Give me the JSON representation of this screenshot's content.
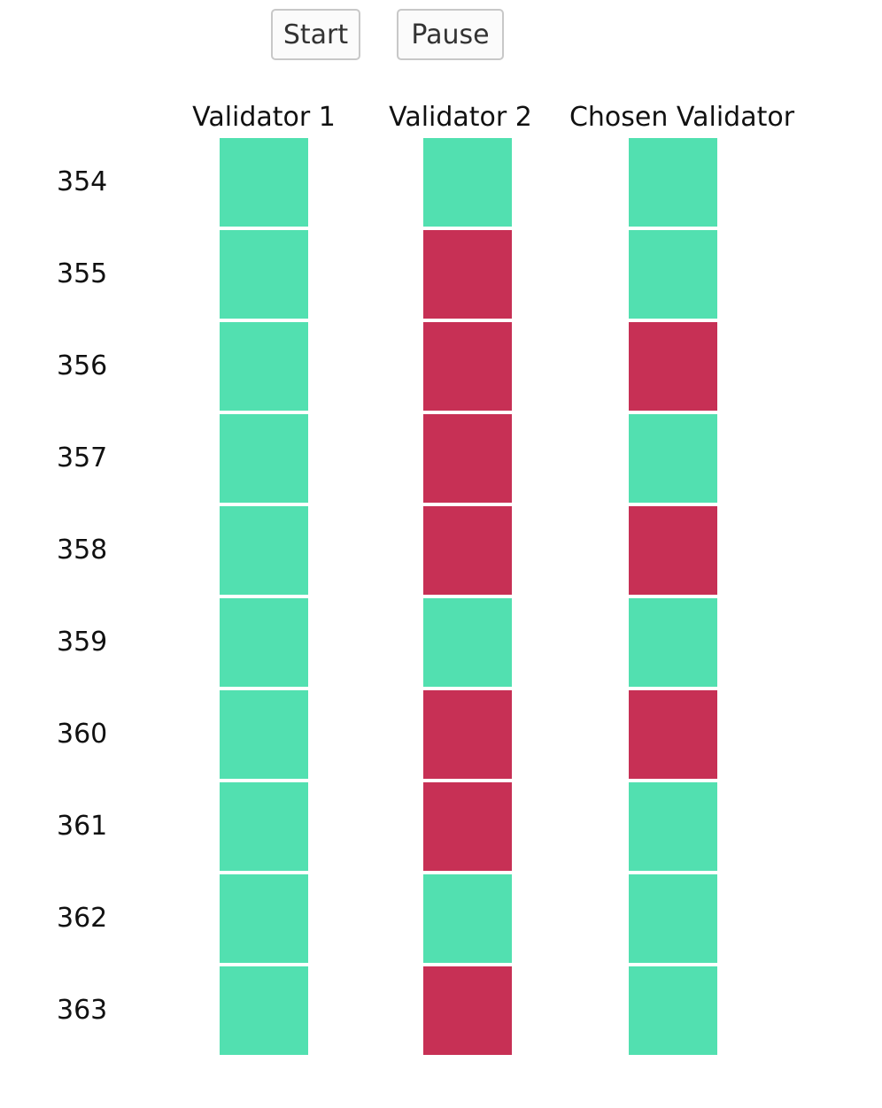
{
  "controls": {
    "start_label": "Start",
    "pause_label": "Pause"
  },
  "columns": [
    "Validator 1",
    "Validator 2",
    "Chosen Validator"
  ],
  "colors": {
    "valid": "#52e0b0",
    "invalid": "#c73055"
  },
  "rows": [
    {
      "id": "354",
      "states": [
        "valid",
        "valid",
        "valid"
      ]
    },
    {
      "id": "355",
      "states": [
        "valid",
        "invalid",
        "valid"
      ]
    },
    {
      "id": "356",
      "states": [
        "valid",
        "invalid",
        "invalid"
      ]
    },
    {
      "id": "357",
      "states": [
        "valid",
        "invalid",
        "valid"
      ]
    },
    {
      "id": "358",
      "states": [
        "valid",
        "invalid",
        "invalid"
      ]
    },
    {
      "id": "359",
      "states": [
        "valid",
        "valid",
        "valid"
      ]
    },
    {
      "id": "360",
      "states": [
        "valid",
        "invalid",
        "invalid"
      ]
    },
    {
      "id": "361",
      "states": [
        "valid",
        "invalid",
        "valid"
      ]
    },
    {
      "id": "362",
      "states": [
        "valid",
        "valid",
        "valid"
      ]
    },
    {
      "id": "363",
      "states": [
        "valid",
        "invalid",
        "valid"
      ]
    }
  ]
}
